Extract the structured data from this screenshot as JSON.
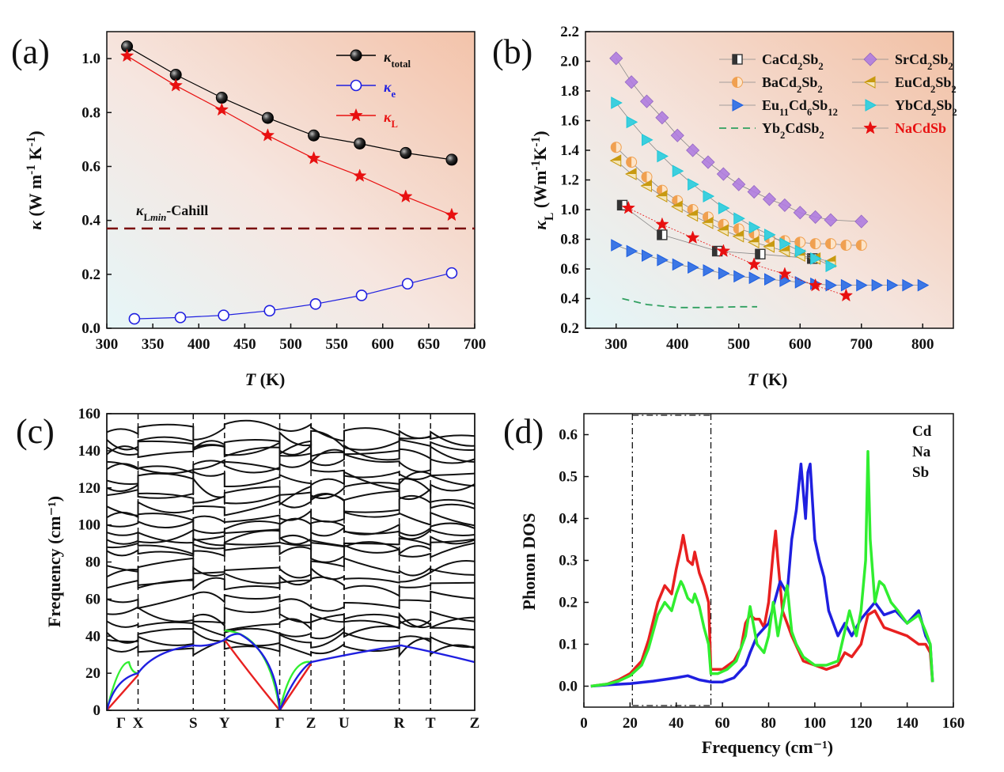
{
  "panel_labels": [
    "(a)",
    "(b)",
    "(c)",
    "(d)"
  ],
  "chart_data": [
    {
      "id": "a",
      "type": "line",
      "xlabel": "T (K)",
      "ylabel": "κ (W m⁻¹ K⁻¹)",
      "xlim": [
        300,
        700
      ],
      "ylim": [
        0.0,
        1.1
      ],
      "xticks": [
        300,
        350,
        400,
        450,
        500,
        550,
        600,
        650,
        700
      ],
      "yticks": [
        0.0,
        0.2,
        0.4,
        0.6,
        0.8,
        1.0
      ],
      "annotation": "κLmin-Cahill",
      "cahill_min": 0.37,
      "legend_position": "top-right",
      "series": [
        {
          "name": "κtotal",
          "color": "#000000",
          "marker": "ball",
          "x": [
            322,
            375,
            425,
            475,
            525,
            575,
            625,
            675
          ],
          "y": [
            1.045,
            0.94,
            0.855,
            0.78,
            0.715,
            0.685,
            0.65,
            0.625
          ]
        },
        {
          "name": "κe",
          "color": "#1f1fe0",
          "marker": "open-circle",
          "x": [
            330,
            380,
            427,
            477,
            527,
            577,
            627,
            675
          ],
          "y": [
            0.035,
            0.04,
            0.048,
            0.065,
            0.09,
            0.122,
            0.165,
            0.205
          ]
        },
        {
          "name": "κL",
          "color": "#e81010",
          "marker": "star",
          "x": [
            322,
            375,
            425,
            475,
            525,
            575,
            625,
            675
          ],
          "y": [
            1.01,
            0.9,
            0.81,
            0.715,
            0.63,
            0.565,
            0.488,
            0.42
          ]
        }
      ]
    },
    {
      "id": "b",
      "type": "scatter",
      "xlabel": "T (K)",
      "ylabel": "κL (Wm⁻¹K⁻¹)",
      "xlim": [
        250,
        850
      ],
      "ylim": [
        0.2,
        2.2
      ],
      "xticks": [
        300,
        400,
        500,
        600,
        700,
        800
      ],
      "yticks": [
        0.2,
        0.4,
        0.6,
        0.8,
        1.0,
        1.2,
        1.4,
        1.6,
        1.8,
        2.0,
        2.2
      ],
      "legend_position": "top-right",
      "series": [
        {
          "name": "CaCd₂Sb₂",
          "color": "#555555",
          "marker": "half-square",
          "x": [
            310,
            375,
            465,
            535,
            620
          ],
          "y": [
            1.03,
            0.83,
            0.72,
            0.7,
            0.67
          ]
        },
        {
          "name": "SrCd₂Sb₂",
          "color": "#b07de0",
          "marker": "diamond",
          "x": [
            300,
            325,
            350,
            375,
            400,
            425,
            450,
            475,
            500,
            525,
            550,
            575,
            600,
            625,
            650,
            700
          ],
          "y": [
            2.02,
            1.86,
            1.73,
            1.62,
            1.5,
            1.4,
            1.32,
            1.24,
            1.17,
            1.12,
            1.07,
            1.03,
            0.98,
            0.95,
            0.93,
            0.92
          ]
        },
        {
          "name": "BaCd₂Sb₂",
          "color": "#f0a050",
          "marker": "half-circle",
          "x": [
            300,
            325,
            350,
            375,
            400,
            425,
            450,
            475,
            500,
            525,
            550,
            575,
            600,
            625,
            650,
            675,
            700
          ],
          "y": [
            1.42,
            1.32,
            1.22,
            1.13,
            1.06,
            1.0,
            0.95,
            0.9,
            0.87,
            0.84,
            0.81,
            0.79,
            0.78,
            0.77,
            0.77,
            0.76,
            0.76
          ]
        },
        {
          "name": "EuCd₂Sb₂",
          "color": "#c89a10",
          "marker": "left-triangle",
          "x": [
            300,
            325,
            350,
            375,
            400,
            425,
            450,
            475,
            500,
            525,
            550,
            575,
            600,
            625,
            650
          ],
          "y": [
            1.33,
            1.24,
            1.16,
            1.09,
            1.02,
            0.96,
            0.91,
            0.86,
            0.82,
            0.78,
            0.75,
            0.72,
            0.69,
            0.67,
            0.65
          ]
        },
        {
          "name": "Eu₁₁Cd₆Sb₁₂",
          "color": "#2060e0",
          "marker": "right-triangle",
          "x": [
            300,
            325,
            350,
            375,
            400,
            425,
            450,
            475,
            500,
            525,
            550,
            575,
            600,
            625,
            650,
            675,
            700,
            725,
            750,
            775,
            800
          ],
          "y": [
            0.76,
            0.72,
            0.69,
            0.66,
            0.63,
            0.61,
            0.59,
            0.57,
            0.55,
            0.54,
            0.53,
            0.52,
            0.51,
            0.5,
            0.49,
            0.49,
            0.49,
            0.49,
            0.49,
            0.49,
            0.49
          ]
        },
        {
          "name": "YbCd₂Sb₂",
          "color": "#20c8d8",
          "marker": "right-triangle",
          "x": [
            300,
            325,
            350,
            375,
            400,
            425,
            450,
            475,
            500,
            525,
            550,
            575,
            600,
            625,
            650
          ],
          "y": [
            1.72,
            1.59,
            1.47,
            1.36,
            1.26,
            1.17,
            1.09,
            1.01,
            0.94,
            0.88,
            0.83,
            0.77,
            0.72,
            0.67,
            0.62
          ]
        },
        {
          "name": "Yb₂CdSb₂",
          "color": "#30a060",
          "marker": "dashed-line",
          "x": [
            310,
            350,
            400,
            450,
            500,
            530
          ],
          "y": [
            0.4,
            0.36,
            0.34,
            0.34,
            0.345,
            0.345
          ]
        },
        {
          "name": "NaCdSb",
          "color": "#e81010",
          "marker": "star",
          "x": [
            320,
            375,
            425,
            475,
            525,
            575,
            625,
            675
          ],
          "y": [
            1.01,
            0.9,
            0.81,
            0.72,
            0.63,
            0.565,
            0.488,
            0.42
          ]
        }
      ]
    },
    {
      "id": "c",
      "type": "line",
      "xlabel": "",
      "ylabel": "Frequency (cm⁻¹)",
      "ylim": [
        0,
        160
      ],
      "yticks": [
        0,
        20,
        40,
        60,
        80,
        100,
        120,
        140,
        160
      ],
      "high_symmetry_points": [
        "Γ",
        "X",
        "S",
        "Y",
        "Γ",
        "Z",
        "U",
        "R",
        "T",
        "Z"
      ],
      "high_symmetry_positions": [
        0.0,
        0.085,
        0.235,
        0.32,
        0.47,
        0.555,
        0.645,
        0.795,
        0.88,
        1.0
      ],
      "note": "phonon band structure; acoustic branches coloured red, green, blue; optical branches black"
    },
    {
      "id": "d",
      "type": "line",
      "xlabel": "Frequency (cm⁻¹)",
      "ylabel": "Phonon DOS",
      "xlim": [
        0,
        160
      ],
      "ylim": [
        -0.05,
        0.65
      ],
      "xticks": [
        0,
        20,
        40,
        60,
        80,
        100,
        120,
        140,
        160
      ],
      "yticks": [
        0.0,
        0.1,
        0.2,
        0.3,
        0.4,
        0.5,
        0.6
      ],
      "vlines": [
        21,
        55
      ],
      "legend_position": "top-right",
      "series": [
        {
          "name": "Cd",
          "color": "#e82020",
          "x": [
            3,
            10,
            15,
            20,
            25,
            28,
            32,
            35,
            38,
            40,
            42,
            43,
            45,
            47,
            48,
            50,
            52,
            54,
            55,
            57,
            60,
            65,
            68,
            70,
            72,
            74,
            76,
            78,
            80,
            82,
            83,
            84,
            86,
            88,
            90,
            95,
            100,
            105,
            110,
            113,
            116,
            120,
            123,
            126,
            130,
            135,
            140,
            145,
            148,
            150,
            151
          ],
          "y": [
            0.0,
            0.005,
            0.015,
            0.03,
            0.06,
            0.11,
            0.2,
            0.24,
            0.22,
            0.28,
            0.33,
            0.36,
            0.3,
            0.29,
            0.32,
            0.27,
            0.24,
            0.2,
            0.04,
            0.04,
            0.04,
            0.06,
            0.09,
            0.15,
            0.17,
            0.16,
            0.16,
            0.14,
            0.2,
            0.32,
            0.37,
            0.3,
            0.18,
            0.15,
            0.12,
            0.06,
            0.05,
            0.04,
            0.05,
            0.08,
            0.07,
            0.1,
            0.17,
            0.18,
            0.14,
            0.13,
            0.12,
            0.1,
            0.1,
            0.08,
            0.01
          ]
        },
        {
          "name": "Na",
          "color": "#1f1fe0",
          "x": [
            3,
            10,
            20,
            30,
            40,
            45,
            50,
            55,
            60,
            65,
            70,
            72,
            75,
            80,
            85,
            88,
            90,
            92,
            94,
            96,
            97,
            98,
            100,
            102,
            104,
            106,
            110,
            113,
            116,
            120,
            123,
            126,
            130,
            135,
            140,
            145,
            148,
            150,
            151
          ],
          "y": [
            0.0,
            0.003,
            0.006,
            0.012,
            0.02,
            0.025,
            0.015,
            0.01,
            0.01,
            0.02,
            0.05,
            0.08,
            0.12,
            0.15,
            0.25,
            0.22,
            0.35,
            0.42,
            0.53,
            0.4,
            0.51,
            0.53,
            0.35,
            0.3,
            0.26,
            0.18,
            0.12,
            0.15,
            0.12,
            0.16,
            0.18,
            0.2,
            0.17,
            0.18,
            0.15,
            0.18,
            0.12,
            0.1,
            0.01
          ]
        },
        {
          "name": "Sb",
          "color": "#30ee30",
          "x": [
            3,
            10,
            15,
            20,
            25,
            28,
            32,
            35,
            38,
            40,
            42,
            43,
            45,
            47,
            48,
            50,
            52,
            54,
            55,
            58,
            62,
            66,
            70,
            72,
            75,
            78,
            80,
            82,
            84,
            86,
            88,
            90,
            92,
            95,
            100,
            105,
            110,
            115,
            118,
            120,
            122,
            123,
            124,
            126,
            128,
            130,
            133,
            136,
            140,
            145,
            148,
            150,
            151
          ],
          "y": [
            0.0,
            0.005,
            0.012,
            0.025,
            0.05,
            0.09,
            0.17,
            0.2,
            0.18,
            0.22,
            0.25,
            0.24,
            0.21,
            0.2,
            0.22,
            0.19,
            0.14,
            0.1,
            0.03,
            0.03,
            0.04,
            0.06,
            0.12,
            0.19,
            0.1,
            0.08,
            0.12,
            0.2,
            0.12,
            0.18,
            0.24,
            0.13,
            0.1,
            0.07,
            0.05,
            0.05,
            0.06,
            0.18,
            0.12,
            0.18,
            0.3,
            0.56,
            0.35,
            0.2,
            0.25,
            0.24,
            0.2,
            0.18,
            0.15,
            0.17,
            0.13,
            0.1,
            0.01
          ]
        }
      ]
    }
  ]
}
